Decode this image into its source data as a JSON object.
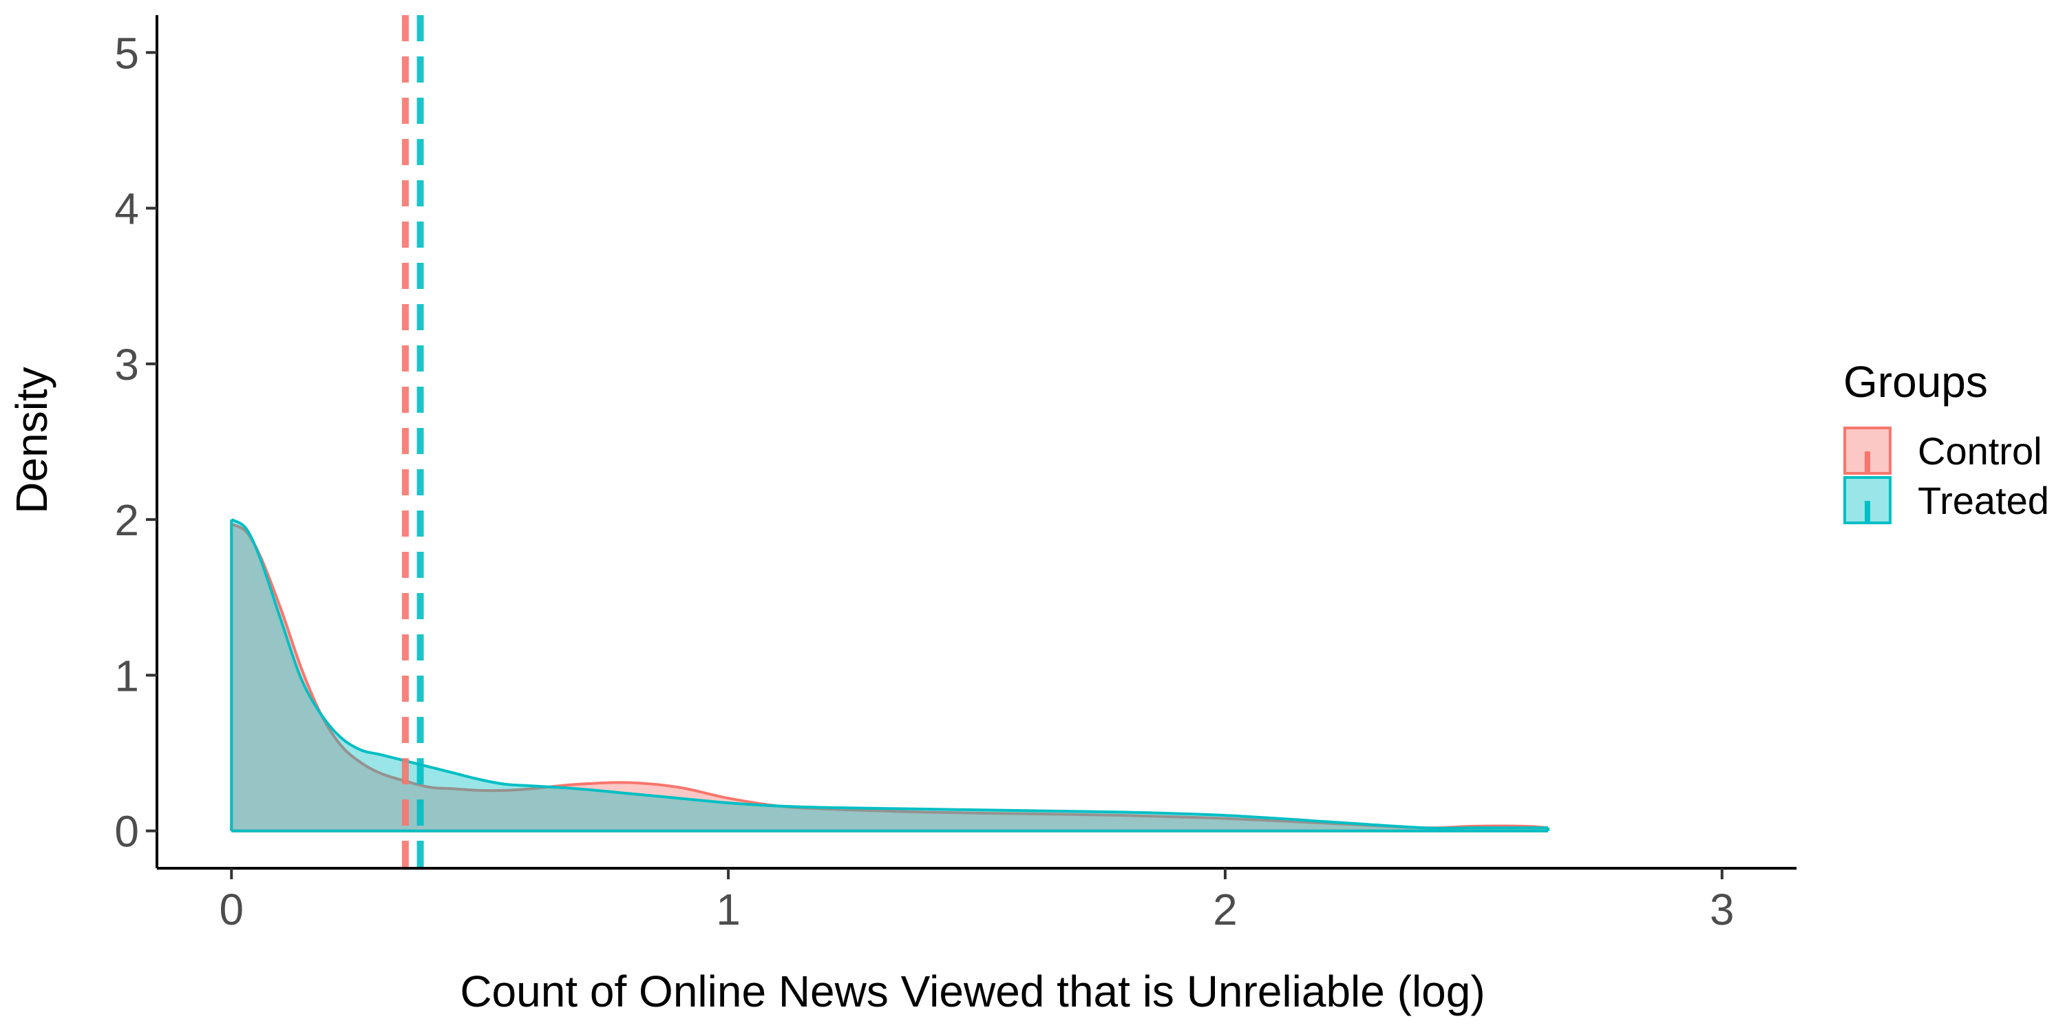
{
  "chart_data": {
    "type": "area",
    "xlabel": "Count of Online News Viewed that is Unreliable (log)",
    "ylabel": "Density",
    "xlim": [
      -0.15,
      3.15
    ],
    "ylim": [
      -0.24,
      5.24
    ],
    "xticks": [
      0,
      1,
      2,
      3
    ],
    "yticks": [
      0,
      1,
      2,
      3,
      4,
      5
    ],
    "grid": false,
    "legend": {
      "title": "Groups",
      "position": "right"
    },
    "series": [
      {
        "name": "Control",
        "color": "#F8766D",
        "mean": 0.35,
        "x": [
          0,
          0.03,
          0.06,
          0.1,
          0.14,
          0.18,
          0.22,
          0.26,
          0.3,
          0.35,
          0.4,
          0.45,
          0.5,
          0.55,
          0.6,
          0.7,
          0.8,
          0.9,
          1.0,
          1.1,
          1.2,
          1.4,
          1.6,
          1.8,
          2.0,
          2.2,
          2.4,
          2.5,
          2.6,
          2.65
        ],
        "y": [
          1.97,
          1.92,
          1.75,
          1.42,
          1.05,
          0.75,
          0.55,
          0.44,
          0.37,
          0.32,
          0.28,
          0.27,
          0.26,
          0.26,
          0.27,
          0.3,
          0.31,
          0.28,
          0.21,
          0.16,
          0.14,
          0.12,
          0.11,
          0.1,
          0.08,
          0.05,
          0.02,
          0.03,
          0.03,
          0.02
        ]
      },
      {
        "name": "Treated",
        "color": "#00BFC4",
        "mean": 0.38,
        "x": [
          0,
          0.03,
          0.06,
          0.1,
          0.14,
          0.18,
          0.22,
          0.26,
          0.3,
          0.35,
          0.4,
          0.45,
          0.5,
          0.55,
          0.6,
          0.7,
          0.8,
          0.9,
          1.0,
          1.1,
          1.2,
          1.4,
          1.6,
          1.8,
          2.0,
          2.2,
          2.4,
          2.5,
          2.6,
          2.65
        ],
        "y": [
          2.0,
          1.94,
          1.73,
          1.35,
          0.98,
          0.75,
          0.6,
          0.52,
          0.49,
          0.45,
          0.41,
          0.37,
          0.33,
          0.3,
          0.29,
          0.27,
          0.24,
          0.21,
          0.18,
          0.16,
          0.15,
          0.14,
          0.13,
          0.12,
          0.1,
          0.06,
          0.02,
          0.02,
          0.02,
          0.02
        ]
      }
    ]
  }
}
